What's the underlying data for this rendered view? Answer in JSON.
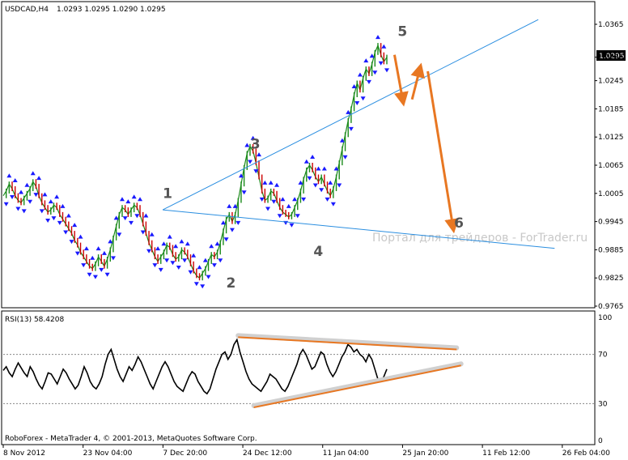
{
  "chart_data": [
    {
      "type": "line",
      "symbol": "USDCAD,H4",
      "ohlc": "1.0293 1.0295 1.0290 1.0295",
      "current_price": "1.0295",
      "ylim": [
        0.9765,
        1.0365
      ],
      "y_ticks": [
        "1.0365",
        "1.0295",
        "1.0245",
        "1.0185",
        "1.0125",
        "1.0065",
        "1.0005",
        "0.9945",
        "0.9885",
        "0.9825",
        "0.9765"
      ],
      "x_ticks": [
        "8 Nov 2012",
        "23 Nov 04:00",
        "7 Dec 20:00",
        "24 Dec 12:00",
        "11 Jan 04:00",
        "25 Jan 20:00",
        "11 Feb 12:00",
        "26 Feb 04:00"
      ],
      "watermark": "Портал для трейдеров - ForTrader.ru",
      "wave_labels": [
        {
          "label": "1",
          "x": 0.254,
          "y": 0.9995
        },
        {
          "label": "2",
          "x": 0.355,
          "y": 0.9805
        },
        {
          "label": "3",
          "x": 0.394,
          "y": 1.01
        },
        {
          "label": "4",
          "x": 0.494,
          "y": 0.9872
        },
        {
          "label": "5",
          "x": 0.628,
          "y": 1.034
        },
        {
          "label": "6",
          "x": 0.718,
          "y": 0.9932
        }
      ],
      "series": [
        {
          "values": [
            1.0,
            1.001,
            1.0025,
            1.0015,
            1.0,
            0.999,
            0.9985,
            0.9995,
            1.0005,
            1.0015,
            1.003,
            1.002,
            1.0,
            0.9985,
            0.9975,
            0.9965,
            0.997,
            0.998,
            0.9975,
            0.996,
            0.995,
            0.994,
            0.993,
            0.992,
            0.9905,
            0.9895,
            0.988,
            0.987,
            0.986,
            0.985,
            0.9845,
            0.9855,
            0.987,
            0.986,
            0.985,
            0.9865,
            0.9885,
            0.991,
            0.9935,
            0.996,
            0.9975,
            0.997,
            0.996,
            0.997,
            0.998,
            0.9975,
            0.996,
            0.994,
            0.992,
            0.99,
            0.9885,
            0.987,
            0.986,
            0.987,
            0.988,
            0.9895,
            0.989,
            0.9875,
            0.9865,
            0.987,
            0.9885,
            0.988,
            0.987,
            0.9855,
            0.984,
            0.983,
            0.9825,
            0.9835,
            0.9845,
            0.986,
            0.9875,
            0.987,
            0.988,
            0.99,
            0.9925,
            0.995,
            0.996,
            0.9945,
            0.996,
            0.999,
            1.0025,
            1.006,
            1.009,
            1.0105,
            1.0095,
            1.007,
            1.004,
            1.001,
            0.999,
            0.9995,
            1.001,
            1.0005,
            0.999,
            0.9975,
            0.9965,
            0.996,
            0.9955,
            0.996,
            0.9975,
            0.999,
            1.001,
            1.0035,
            1.0055,
            1.0065,
            1.0055,
            1.004,
            1.003,
            1.004,
            1.0025,
            1.001,
            1.0,
            1.0015,
            1.004,
            1.007,
            1.01,
            1.013,
            1.016,
            1.0185,
            1.0215,
            1.024,
            1.0225,
            1.025,
            1.027,
            1.026,
            1.028,
            1.0305,
            1.032,
            1.03,
            1.0285,
            1.0295
          ]
        }
      ],
      "waves": [
        {
          "x": [
            0.254,
            0.852
          ],
          "y": [
            0.997,
            1.0375
          ]
        },
        {
          "x": [
            0.254,
            0.878
          ],
          "y": [
            0.997,
            0.9888
          ]
        }
      ],
      "arrows": [
        {
          "x": [
            0.623,
            0.636
          ],
          "y": [
            1.03,
            1.0205
          ]
        },
        {
          "x": [
            0.651,
            0.663
          ],
          "y": [
            1.0205,
            1.0268
          ]
        },
        {
          "x": [
            0.676,
            0.716
          ],
          "y": [
            1.0265,
            0.9935
          ]
        }
      ]
    },
    {
      "type": "line",
      "label": "RSI(13) 58.4208",
      "ylim": [
        0,
        100
      ],
      "y_ticks": [
        "100",
        "70",
        "30",
        "0"
      ],
      "levels": [
        70,
        30
      ],
      "series": [
        {
          "values": [
            57,
            60,
            55,
            52,
            58,
            63,
            59,
            55,
            52,
            60,
            56,
            50,
            45,
            42,
            48,
            55,
            54,
            50,
            46,
            52,
            58,
            55,
            50,
            46,
            42,
            45,
            52,
            60,
            55,
            48,
            44,
            42,
            46,
            52,
            62,
            70,
            74,
            66,
            58,
            52,
            48,
            54,
            60,
            57,
            62,
            68,
            64,
            58,
            52,
            46,
            42,
            48,
            54,
            60,
            64,
            60,
            54,
            48,
            44,
            42,
            40,
            46,
            52,
            56,
            54,
            48,
            44,
            40,
            38,
            42,
            50,
            58,
            64,
            70,
            72,
            66,
            70,
            78,
            82,
            72,
            64,
            56,
            50,
            46,
            44,
            42,
            40,
            44,
            48,
            54,
            52,
            50,
            46,
            42,
            40,
            44,
            50,
            56,
            62,
            70,
            74,
            70,
            64,
            58,
            60,
            66,
            72,
            70,
            62,
            56,
            52,
            56,
            62,
            68,
            72,
            78,
            76,
            72,
            74,
            70,
            68,
            64,
            70,
            66,
            58,
            50,
            48,
            52,
            58
          ]
        }
      ],
      "trend_lines": [
        {
          "x": [
            0.374,
            0.722
          ],
          "y": [
            84,
            74
          ]
        },
        {
          "x": [
            0.399,
            0.729
          ],
          "y": [
            27,
            61
          ]
        }
      ]
    }
  ],
  "footer": "RoboForex - MetaTrader 4, © 2001-2013, MetaQuotes Software Corp."
}
